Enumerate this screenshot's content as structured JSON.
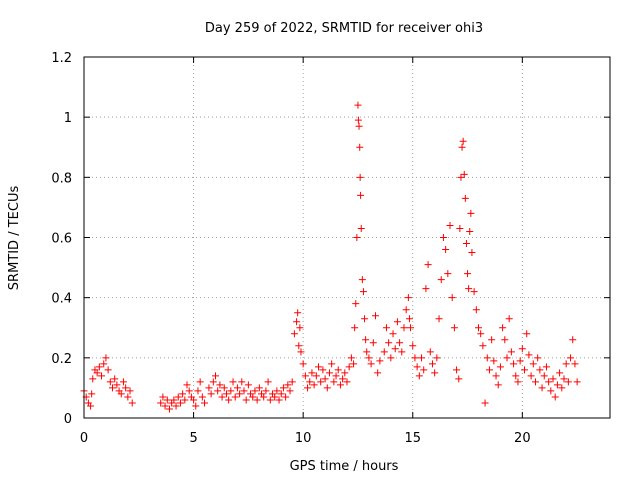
{
  "chart_data": {
    "type": "scatter",
    "title": "Day 259 of 2022, SRMTID for receiver ohi3",
    "xlabel": "GPS time / hours",
    "ylabel": "SRMTID / TECUs",
    "xlim": [
      0,
      24
    ],
    "ylim": [
      0,
      1.2
    ],
    "x_ticks": [
      0,
      5,
      10,
      15,
      20
    ],
    "x_tick_labels": [
      "0",
      "5",
      "10",
      "15",
      "20"
    ],
    "y_ticks": [
      0,
      0.2,
      0.4,
      0.6,
      0.8,
      1.0,
      1.2
    ],
    "y_tick_labels": [
      "0",
      "0.2",
      "0.4",
      "0.6",
      "0.8",
      "1",
      "1.2"
    ],
    "grid": true,
    "series": [
      {
        "name": "SRMTID",
        "color": "#ff0000",
        "marker": "plus",
        "points": [
          [
            0.0,
            0.09
          ],
          [
            0.1,
            0.07
          ],
          [
            0.2,
            0.05
          ],
          [
            0.3,
            0.04
          ],
          [
            0.35,
            0.08
          ],
          [
            0.4,
            0.13
          ],
          [
            0.5,
            0.16
          ],
          [
            0.6,
            0.15
          ],
          [
            0.7,
            0.17
          ],
          [
            0.8,
            0.14
          ],
          [
            0.9,
            0.18
          ],
          [
            1.0,
            0.2
          ],
          [
            1.1,
            0.16
          ],
          [
            1.2,
            0.12
          ],
          [
            1.3,
            0.1
          ],
          [
            1.4,
            0.13
          ],
          [
            1.5,
            0.11
          ],
          [
            1.6,
            0.09
          ],
          [
            1.7,
            0.08
          ],
          [
            1.8,
            0.12
          ],
          [
            1.9,
            0.1
          ],
          [
            2.0,
            0.07
          ],
          [
            2.1,
            0.09
          ],
          [
            2.2,
            0.05
          ],
          [
            3.5,
            0.05
          ],
          [
            3.6,
            0.07
          ],
          [
            3.7,
            0.04
          ],
          [
            3.8,
            0.06
          ],
          [
            3.9,
            0.03
          ],
          [
            4.0,
            0.05
          ],
          [
            4.1,
            0.06
          ],
          [
            4.2,
            0.04
          ],
          [
            4.3,
            0.07
          ],
          [
            4.4,
            0.05
          ],
          [
            4.5,
            0.08
          ],
          [
            4.6,
            0.06
          ],
          [
            4.7,
            0.11
          ],
          [
            4.8,
            0.09
          ],
          [
            4.9,
            0.07
          ],
          [
            5.0,
            0.06
          ],
          [
            5.1,
            0.04
          ],
          [
            5.2,
            0.09
          ],
          [
            5.3,
            0.12
          ],
          [
            5.4,
            0.07
          ],
          [
            5.5,
            0.05
          ],
          [
            5.7,
            0.1
          ],
          [
            5.8,
            0.08
          ],
          [
            5.9,
            0.12
          ],
          [
            6.0,
            0.14
          ],
          [
            6.1,
            0.09
          ],
          [
            6.2,
            0.11
          ],
          [
            6.3,
            0.07
          ],
          [
            6.4,
            0.1
          ],
          [
            6.5,
            0.08
          ],
          [
            6.6,
            0.06
          ],
          [
            6.7,
            0.09
          ],
          [
            6.8,
            0.12
          ],
          [
            6.9,
            0.07
          ],
          [
            7.0,
            0.1
          ],
          [
            7.1,
            0.08
          ],
          [
            7.2,
            0.12
          ],
          [
            7.3,
            0.09
          ],
          [
            7.4,
            0.06
          ],
          [
            7.5,
            0.11
          ],
          [
            7.6,
            0.08
          ],
          [
            7.7,
            0.07
          ],
          [
            7.8,
            0.09
          ],
          [
            7.9,
            0.06
          ],
          [
            8.0,
            0.1
          ],
          [
            8.1,
            0.08
          ],
          [
            8.2,
            0.07
          ],
          [
            8.3,
            0.09
          ],
          [
            8.4,
            0.12
          ],
          [
            8.5,
            0.06
          ],
          [
            8.6,
            0.08
          ],
          [
            8.7,
            0.07
          ],
          [
            8.8,
            0.09
          ],
          [
            8.9,
            0.06
          ],
          [
            9.0,
            0.08
          ],
          [
            9.1,
            0.1
          ],
          [
            9.2,
            0.07
          ],
          [
            9.3,
            0.11
          ],
          [
            9.4,
            0.09
          ],
          [
            9.5,
            0.12
          ],
          [
            9.6,
            0.28
          ],
          [
            9.7,
            0.32
          ],
          [
            9.75,
            0.35
          ],
          [
            9.8,
            0.24
          ],
          [
            9.85,
            0.3
          ],
          [
            9.9,
            0.22
          ],
          [
            10.0,
            0.18
          ],
          [
            10.1,
            0.14
          ],
          [
            10.2,
            0.1
          ],
          [
            10.3,
            0.12
          ],
          [
            10.4,
            0.15
          ],
          [
            10.5,
            0.11
          ],
          [
            10.6,
            0.14
          ],
          [
            10.7,
            0.17
          ],
          [
            10.8,
            0.12
          ],
          [
            10.9,
            0.16
          ],
          [
            11.0,
            0.13
          ],
          [
            11.1,
            0.1
          ],
          [
            11.2,
            0.15
          ],
          [
            11.3,
            0.18
          ],
          [
            11.4,
            0.12
          ],
          [
            11.5,
            0.14
          ],
          [
            11.6,
            0.16
          ],
          [
            11.7,
            0.11
          ],
          [
            11.8,
            0.13
          ],
          [
            11.9,
            0.15
          ],
          [
            12.0,
            0.12
          ],
          [
            12.1,
            0.17
          ],
          [
            12.2,
            0.2
          ],
          [
            12.3,
            0.18
          ],
          [
            12.35,
            0.3
          ],
          [
            12.4,
            0.38
          ],
          [
            12.45,
            0.6
          ],
          [
            12.5,
            1.04
          ],
          [
            12.52,
            0.99
          ],
          [
            12.55,
            0.97
          ],
          [
            12.58,
            0.9
          ],
          [
            12.6,
            0.8
          ],
          [
            12.62,
            0.74
          ],
          [
            12.65,
            0.63
          ],
          [
            12.7,
            0.46
          ],
          [
            12.75,
            0.42
          ],
          [
            12.8,
            0.33
          ],
          [
            12.85,
            0.26
          ],
          [
            12.9,
            0.22
          ],
          [
            13.0,
            0.2
          ],
          [
            13.1,
            0.18
          ],
          [
            13.2,
            0.25
          ],
          [
            13.3,
            0.34
          ],
          [
            13.4,
            0.15
          ],
          [
            13.5,
            0.19
          ],
          [
            13.7,
            0.22
          ],
          [
            13.8,
            0.3
          ],
          [
            13.9,
            0.25
          ],
          [
            14.0,
            0.2
          ],
          [
            14.1,
            0.28
          ],
          [
            14.2,
            0.23
          ],
          [
            14.3,
            0.32
          ],
          [
            14.4,
            0.25
          ],
          [
            14.5,
            0.22
          ],
          [
            14.6,
            0.3
          ],
          [
            14.7,
            0.36
          ],
          [
            14.8,
            0.4
          ],
          [
            14.85,
            0.33
          ],
          [
            14.9,
            0.3
          ],
          [
            15.0,
            0.24
          ],
          [
            15.1,
            0.2
          ],
          [
            15.2,
            0.17
          ],
          [
            15.3,
            0.14
          ],
          [
            15.4,
            0.2
          ],
          [
            15.5,
            0.16
          ],
          [
            15.6,
            0.43
          ],
          [
            15.7,
            0.51
          ],
          [
            15.8,
            0.22
          ],
          [
            15.9,
            0.18
          ],
          [
            16.0,
            0.15
          ],
          [
            16.1,
            0.2
          ],
          [
            16.2,
            0.33
          ],
          [
            16.3,
            0.46
          ],
          [
            16.4,
            0.6
          ],
          [
            16.5,
            0.56
          ],
          [
            16.6,
            0.48
          ],
          [
            16.7,
            0.64
          ],
          [
            16.8,
            0.4
          ],
          [
            16.9,
            0.3
          ],
          [
            17.0,
            0.16
          ],
          [
            17.1,
            0.13
          ],
          [
            17.15,
            0.63
          ],
          [
            17.2,
            0.8
          ],
          [
            17.25,
            0.9
          ],
          [
            17.3,
            0.92
          ],
          [
            17.35,
            0.81
          ],
          [
            17.4,
            0.73
          ],
          [
            17.45,
            0.58
          ],
          [
            17.5,
            0.48
          ],
          [
            17.55,
            0.43
          ],
          [
            17.6,
            0.62
          ],
          [
            17.65,
            0.68
          ],
          [
            17.7,
            0.55
          ],
          [
            17.8,
            0.42
          ],
          [
            17.9,
            0.36
          ],
          [
            18.0,
            0.3
          ],
          [
            18.1,
            0.28
          ],
          [
            18.2,
            0.24
          ],
          [
            18.3,
            0.05
          ],
          [
            18.4,
            0.2
          ],
          [
            18.5,
            0.16
          ],
          [
            18.6,
            0.26
          ],
          [
            18.7,
            0.19
          ],
          [
            18.8,
            0.14
          ],
          [
            18.9,
            0.11
          ],
          [
            19.0,
            0.17
          ],
          [
            19.1,
            0.3
          ],
          [
            19.2,
            0.26
          ],
          [
            19.3,
            0.2
          ],
          [
            19.4,
            0.33
          ],
          [
            19.5,
            0.22
          ],
          [
            19.6,
            0.18
          ],
          [
            19.7,
            0.14
          ],
          [
            19.8,
            0.12
          ],
          [
            19.9,
            0.19
          ],
          [
            20.0,
            0.23
          ],
          [
            20.1,
            0.16
          ],
          [
            20.2,
            0.28
          ],
          [
            20.3,
            0.21
          ],
          [
            20.4,
            0.14
          ],
          [
            20.5,
            0.18
          ],
          [
            20.6,
            0.12
          ],
          [
            20.7,
            0.2
          ],
          [
            20.8,
            0.16
          ],
          [
            20.9,
            0.1
          ],
          [
            21.0,
            0.14
          ],
          [
            21.1,
            0.17
          ],
          [
            21.2,
            0.12
          ],
          [
            21.3,
            0.09
          ],
          [
            21.4,
            0.13
          ],
          [
            21.5,
            0.07
          ],
          [
            21.6,
            0.11
          ],
          [
            21.7,
            0.15
          ],
          [
            21.8,
            0.1
          ],
          [
            21.9,
            0.13
          ],
          [
            22.0,
            0.18
          ],
          [
            22.1,
            0.12
          ],
          [
            22.2,
            0.2
          ],
          [
            22.3,
            0.26
          ],
          [
            22.4,
            0.18
          ],
          [
            22.5,
            0.12
          ]
        ]
      }
    ]
  }
}
